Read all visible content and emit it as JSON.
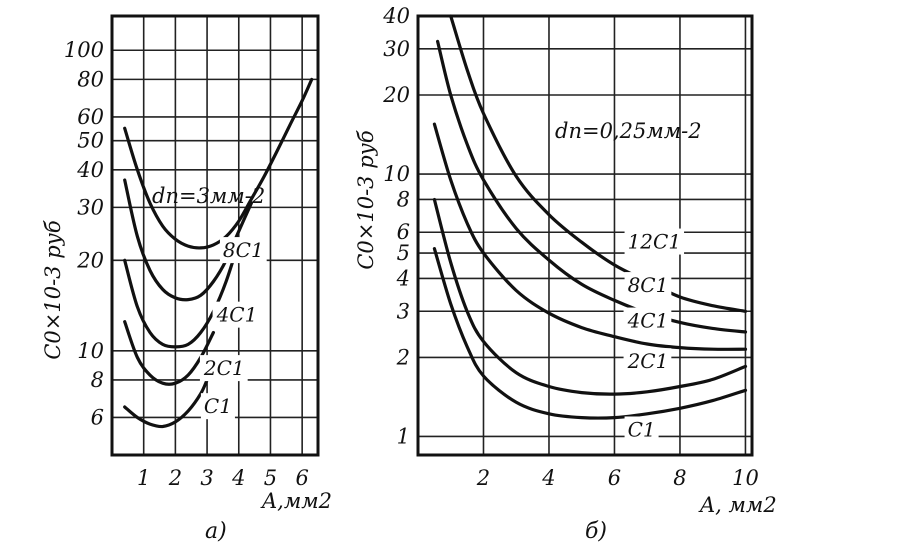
{
  "chart_data": [
    {
      "type": "line",
      "panel_label": "а)",
      "annotation": "dп=3мм-2",
      "xlabel": "A,мм2",
      "ylabel": "C0×10-3 руб",
      "xlim": [
        0,
        6.5
      ],
      "ylim": [
        4.5,
        130
      ],
      "y_scale": "log",
      "grid": true,
      "x_ticks": [
        1,
        2,
        3,
        4,
        5,
        6
      ],
      "x_tick_labels": [
        "1",
        "2",
        "3",
        "4",
        "5",
        "6"
      ],
      "y_ticks": [
        6,
        8,
        10,
        20,
        30,
        40,
        50,
        60,
        80,
        100
      ],
      "y_tick_labels": [
        "6",
        "8",
        "10",
        "20",
        "30",
        "40",
        "50",
        "60",
        "80",
        "100"
      ],
      "series": [
        {
          "name": "C1",
          "label_at": [
            2.9,
            6.2
          ],
          "x": [
            0.4,
            0.8,
            1.2,
            1.6,
            2.0,
            2.4,
            2.8,
            3.0
          ],
          "y": [
            6.5,
            6.0,
            5.7,
            5.6,
            5.8,
            6.3,
            7.2,
            8.0
          ]
        },
        {
          "name": "2C1",
          "label_at": [
            2.9,
            8.3
          ],
          "x": [
            0.4,
            0.8,
            1.2,
            1.6,
            2.0,
            2.4,
            2.8,
            3.2
          ],
          "y": [
            12.5,
            9.5,
            8.3,
            7.8,
            7.8,
            8.3,
            9.5,
            11.5
          ]
        },
        {
          "name": "4C1",
          "label_at": [
            3.3,
            12.5
          ],
          "x": [
            0.4,
            0.8,
            1.2,
            1.6,
            2.0,
            2.4,
            2.8,
            3.2,
            3.6,
            4.0
          ],
          "y": [
            20,
            14,
            11.5,
            10.5,
            10.3,
            10.5,
            11.5,
            13.5,
            17,
            23
          ]
        },
        {
          "name": "8C1",
          "label_at": [
            3.5,
            20.5
          ],
          "x": [
            0.4,
            0.8,
            1.2,
            1.6,
            2.0,
            2.4,
            2.8,
            3.2,
            3.6,
            4.0,
            4.4
          ],
          "y": [
            37,
            24,
            18.5,
            16,
            15,
            14.8,
            15.3,
            17,
            20,
            25,
            31
          ]
        },
        {
          "name": "",
          "x": [
            0.4,
            0.8,
            1.2,
            1.6,
            2.0,
            2.4,
            2.8,
            3.2,
            3.6,
            4.0,
            4.4,
            4.8,
            5.2,
            5.6,
            6.0,
            6.3
          ],
          "y": [
            55,
            40,
            31,
            26,
            23.5,
            22.3,
            22,
            22.5,
            24,
            27,
            32,
            38,
            46,
            56,
            68,
            80
          ]
        }
      ]
    },
    {
      "type": "line",
      "panel_label": "б)",
      "annotation": "dп=0,25мм-2",
      "xlabel": "A, мм2",
      "ylabel": "C0×10-3 руб",
      "xlim": [
        0,
        10.2
      ],
      "ylim": [
        0.85,
        40
      ],
      "y_scale": "log",
      "grid": true,
      "x_ticks": [
        2,
        4,
        6,
        8,
        10
      ],
      "x_tick_labels": [
        "2",
        "4",
        "6",
        "8",
        "10"
      ],
      "y_ticks": [
        1,
        2,
        3,
        4,
        5,
        6,
        8,
        10,
        20,
        30,
        40
      ],
      "y_tick_labels": [
        "1",
        "2",
        "3",
        "4",
        "5",
        "6",
        "8",
        "10",
        "20",
        "30",
        "40"
      ],
      "series": [
        {
          "name": "C1",
          "label_at": [
            6.4,
            1.0
          ],
          "x": [
            0.5,
            1.0,
            1.5,
            2.0,
            3.0,
            4.0,
            5.0,
            6.0,
            7.0,
            8.0,
            9.0,
            10.0
          ],
          "y": [
            5.2,
            3.2,
            2.2,
            1.7,
            1.35,
            1.22,
            1.18,
            1.18,
            1.22,
            1.28,
            1.37,
            1.5
          ]
        },
        {
          "name": "2C1",
          "label_at": [
            6.4,
            1.82
          ],
          "x": [
            0.5,
            1.0,
            1.5,
            2.0,
            3.0,
            4.0,
            5.0,
            6.0,
            7.0,
            8.0,
            9.0,
            10.0
          ],
          "y": [
            8.0,
            4.6,
            3.0,
            2.3,
            1.75,
            1.55,
            1.47,
            1.45,
            1.48,
            1.55,
            1.65,
            1.85
          ]
        },
        {
          "name": "4C1",
          "label_at": [
            6.4,
            2.6
          ],
          "x": [
            0.5,
            1.0,
            1.5,
            2.0,
            3.0,
            4.0,
            5.0,
            6.0,
            7.0,
            8.0,
            9.0,
            10.0
          ],
          "y": [
            15.5,
            9.5,
            6.5,
            5.0,
            3.6,
            2.95,
            2.6,
            2.4,
            2.25,
            2.18,
            2.15,
            2.15
          ]
        },
        {
          "name": "8C1",
          "label_at": [
            6.4,
            3.55
          ],
          "x": [
            0.6,
            1.0,
            1.5,
            2.0,
            3.0,
            4.0,
            5.0,
            6.0,
            7.0,
            8.0,
            9.0,
            10.0
          ],
          "y": [
            32,
            20,
            13,
            9.5,
            6.2,
            4.7,
            3.8,
            3.3,
            2.95,
            2.72,
            2.58,
            2.5
          ]
        },
        {
          "name": "12C1",
          "label_at": [
            6.4,
            5.2
          ],
          "x": [
            1.0,
            1.5,
            2.0,
            3.0,
            4.0,
            5.0,
            6.0,
            7.0,
            8.0,
            9.0,
            10.0
          ],
          "y": [
            40,
            25,
            17,
            9.8,
            7.0,
            5.5,
            4.5,
            3.9,
            3.4,
            3.15,
            3.0
          ]
        }
      ]
    }
  ]
}
